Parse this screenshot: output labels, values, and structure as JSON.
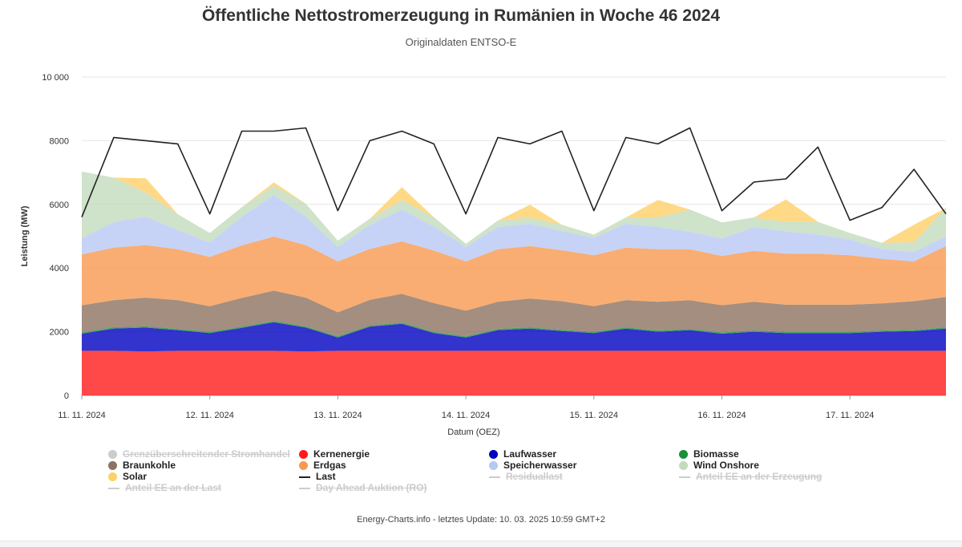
{
  "title": "Öffentliche Nettostromerzeugung in Rumänien in Woche 46 2024",
  "subtitle": "Originaldaten ENTSO-E",
  "footer": "Energy-Charts.info - letztes Update: 10. 03. 2025 10:59 GMT+2",
  "legend": [
    {
      "label": "Grenzüberschreitender Stromhandel",
      "color": "#cccccc",
      "symbol": "dot",
      "active": false
    },
    {
      "label": "Kernenergie",
      "color": "#ff1a1a",
      "symbol": "dot",
      "active": true
    },
    {
      "label": "Laufwasser",
      "color": "#0000c0",
      "symbol": "dot",
      "active": true
    },
    {
      "label": "Biomasse",
      "color": "#1a8f3a",
      "symbol": "dot",
      "active": true
    },
    {
      "label": "Braunkohle",
      "color": "#8c7260",
      "symbol": "dot",
      "active": true
    },
    {
      "label": "Erdgas",
      "color": "#f7994f",
      "symbol": "dot",
      "active": true
    },
    {
      "label": "Speicherwasser",
      "color": "#b8c8f5",
      "symbol": "dot",
      "active": true
    },
    {
      "label": "Wind Onshore",
      "color": "#c3dbbd",
      "symbol": "dot",
      "active": true
    },
    {
      "label": "Solar",
      "color": "#ffd067",
      "symbol": "dot",
      "active": true
    },
    {
      "label": "Last",
      "color": "#222222",
      "symbol": "line",
      "active": true
    },
    {
      "label": "Residuallast",
      "color": "#cccccc",
      "symbol": "line",
      "active": false
    },
    {
      "label": "Anteil EE an der Erzeugung",
      "color": "#cccccc",
      "symbol": "line",
      "active": false
    },
    {
      "label": "Anteil EE an der Last",
      "color": "#cccccc",
      "symbol": "line",
      "active": false
    },
    {
      "label": "Day Ahead Auktion (RO)",
      "color": "#cccccc",
      "symbol": "line",
      "active": false
    }
  ],
  "chart_data": {
    "type": "area",
    "stacked": true,
    "title": "Öffentliche Nettostromerzeugung in Rumänien in Woche 46 2024",
    "subtitle": "Originaldaten ENTSO-E",
    "xlabel": "Datum (OEZ)",
    "ylabel": "Leistung (MW)",
    "ylim": [
      0,
      10000
    ],
    "yticks": [
      0,
      2000,
      4000,
      6000,
      8000,
      10000
    ],
    "ytick_labels": [
      "0",
      "2000",
      "4000",
      "6000",
      "8000",
      "10 000"
    ],
    "xticks": [
      "11. 11. 2024",
      "12. 11. 2024",
      "13. 11. 2024",
      "14. 11. 2024",
      "15. 11. 2024",
      "16. 11. 2024",
      "17. 11. 2024"
    ],
    "grid": true,
    "legend_position": "bottom",
    "x": [
      "11.11. 00:00",
      "11.11. 06:00",
      "11.11. 12:00",
      "11.11. 18:00",
      "12.11. 00:00",
      "12.11. 06:00",
      "12.11. 12:00",
      "12.11. 18:00",
      "13.11. 00:00",
      "13.11. 06:00",
      "13.11. 12:00",
      "13.11. 18:00",
      "14.11. 00:00",
      "14.11. 06:00",
      "14.11. 12:00",
      "14.11. 18:00",
      "15.11. 00:00",
      "15.11. 06:00",
      "15.11. 12:00",
      "15.11. 18:00",
      "16.11. 00:00",
      "16.11. 06:00",
      "16.11. 12:00",
      "16.11. 18:00",
      "17.11. 00:00",
      "17.11. 06:00",
      "17.11. 12:00",
      "17.11. 18:00"
    ],
    "series": [
      {
        "name": "Kernenergie",
        "color": "#ff1a1a",
        "values": [
          1400,
          1400,
          1380,
          1400,
          1400,
          1400,
          1400,
          1380,
          1400,
          1400,
          1400,
          1400,
          1400,
          1400,
          1400,
          1400,
          1400,
          1400,
          1400,
          1400,
          1400,
          1400,
          1400,
          1400,
          1400,
          1400,
          1400,
          1400
        ]
      },
      {
        "name": "Laufwasser",
        "color": "#0000c0",
        "values": [
          540,
          700,
          750,
          650,
          560,
          720,
          900,
          750,
          420,
          760,
          850,
          560,
          420,
          650,
          700,
          620,
          560,
          700,
          600,
          650,
          540,
          600,
          560,
          560,
          560,
          600,
          620,
          700
        ]
      },
      {
        "name": "Biomasse",
        "color": "#1a8f3a",
        "values": [
          40,
          40,
          40,
          40,
          40,
          40,
          40,
          40,
          40,
          40,
          40,
          40,
          40,
          40,
          40,
          40,
          40,
          40,
          40,
          40,
          40,
          40,
          40,
          40,
          40,
          40,
          40,
          40
        ]
      },
      {
        "name": "Braunkohle",
        "color": "#8c7260",
        "values": [
          850,
          850,
          900,
          900,
          800,
          900,
          950,
          900,
          750,
          800,
          900,
          900,
          800,
          850,
          900,
          900,
          800,
          850,
          900,
          900,
          850,
          900,
          850,
          850,
          850,
          850,
          900,
          950
        ]
      },
      {
        "name": "Erdgas",
        "color": "#f7994f",
        "values": [
          1600,
          1650,
          1650,
          1600,
          1550,
          1650,
          1700,
          1650,
          1600,
          1600,
          1650,
          1650,
          1550,
          1650,
          1650,
          1600,
          1600,
          1650,
          1650,
          1600,
          1550,
          1600,
          1600,
          1600,
          1550,
          1400,
          1250,
          1600
        ]
      },
      {
        "name": "Speicherwasser",
        "color": "#b8c8f5",
        "values": [
          500,
          800,
          900,
          600,
          450,
          900,
          1300,
          900,
          450,
          750,
          1000,
          750,
          450,
          700,
          700,
          600,
          550,
          750,
          700,
          550,
          550,
          750,
          700,
          600,
          500,
          300,
          300,
          300
        ]
      },
      {
        "name": "Wind Onshore",
        "color": "#c3dbbd",
        "values": [
          2100,
          1400,
          750,
          500,
          300,
          300,
          300,
          400,
          200,
          200,
          300,
          300,
          100,
          200,
          200,
          200,
          100,
          200,
          300,
          700,
          500,
          300,
          300,
          400,
          200,
          200,
          300,
          900
        ]
      },
      {
        "name": "Solar",
        "color": "#ffd067",
        "values": [
          0,
          0,
          450,
          0,
          0,
          0,
          100,
          0,
          0,
          0,
          400,
          0,
          0,
          0,
          400,
          0,
          0,
          0,
          550,
          0,
          0,
          0,
          700,
          0,
          0,
          0,
          550,
          0
        ]
      },
      {
        "name": "Last",
        "color": "#222222",
        "type": "line",
        "values": [
          5600,
          8100,
          8000,
          7900,
          5700,
          8300,
          8300,
          8400,
          5800,
          8000,
          8300,
          7900,
          5700,
          8100,
          7900,
          8300,
          5800,
          8100,
          7900,
          8400,
          5800,
          6700,
          6800,
          7800,
          5500,
          5900,
          7100,
          5700
        ]
      }
    ]
  }
}
